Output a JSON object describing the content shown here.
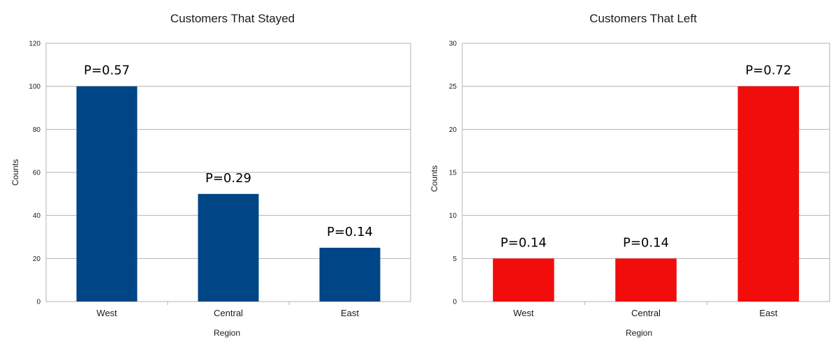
{
  "chart_data": [
    {
      "type": "bar",
      "title": "Customers That Stayed",
      "xlabel": "Region",
      "ylabel": "Counts",
      "categories": [
        "West",
        "Central",
        "East"
      ],
      "values": [
        100,
        50,
        25
      ],
      "data_labels": [
        "P=0.57",
        "P=0.29",
        "P=0.14"
      ],
      "ylim": [
        0,
        120
      ],
      "yticks": [
        0,
        20,
        40,
        60,
        80,
        100,
        120
      ],
      "grid": true,
      "legend": "none",
      "color": "#004586"
    },
    {
      "type": "bar",
      "title": "Customers That Left",
      "xlabel": "Region",
      "ylabel": "Counts",
      "categories": [
        "West",
        "Central",
        "East"
      ],
      "values": [
        5,
        5,
        25
      ],
      "data_labels": [
        "P=0.14",
        "P=0.14",
        "P=0.72"
      ],
      "ylim": [
        0,
        30
      ],
      "yticks": [
        0,
        5,
        10,
        15,
        20,
        25,
        30
      ],
      "grid": true,
      "legend": "none",
      "color": "#f10d0c"
    }
  ]
}
